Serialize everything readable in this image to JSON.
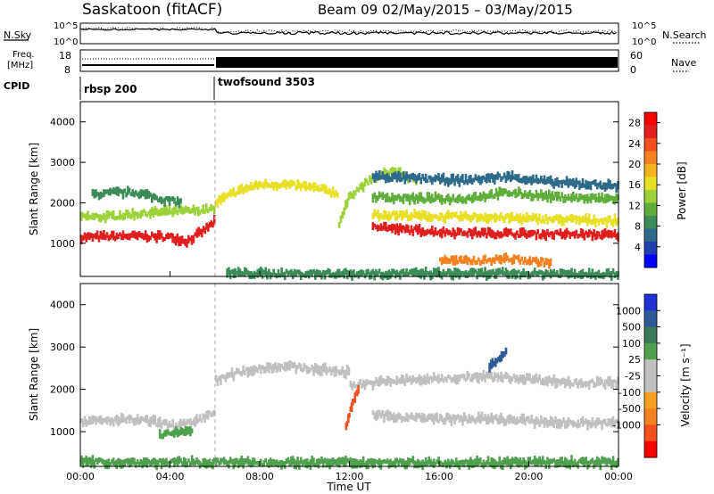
{
  "header": {
    "station": "Saskatoon (fitACF)",
    "beam_and_dates": "Beam 09  02/May/2015 – 03/May/2015"
  },
  "top_panels": {
    "nsky_label": "N.Sky",
    "nsky_ticks": [
      "10^5",
      "10^0"
    ],
    "nsearch_label": "N.Search",
    "freq_label_line1": "Freq.",
    "freq_label_line2": "[MHz]",
    "freq_ticks": [
      "18",
      "8"
    ],
    "nave_ticks": [
      "60",
      "0"
    ],
    "nave_label": "Nave",
    "cpid_label": "CPID",
    "cpid_segments": [
      {
        "name": "rbsp 200",
        "start_hour": 0,
        "end_hour": 6
      },
      {
        "name": "twofsound 3503",
        "start_hour": 6,
        "end_hour": 24
      }
    ]
  },
  "colors": {
    "power": [
      "#0000ff",
      "#1f3fb0",
      "#2e6a8a",
      "#3c8c5a",
      "#5fae3c",
      "#9ed23a",
      "#e7e027",
      "#f4b41e",
      "#f58220",
      "#f0501e",
      "#e01f1f",
      "#ff0000"
    ],
    "velocity": [
      "#ff0000",
      "#f0501e",
      "#f58220",
      "#f5a020",
      "#c0c0c0",
      "#c0c0c0",
      "#4fa04f",
      "#3a7a5a",
      "#2e5a9a",
      "#1f2fd0"
    ]
  },
  "chart_data": [
    {
      "type": "heatmap",
      "title": "Power",
      "ylabel": "Slant Range [km]",
      "ylim": [
        180,
        4500
      ],
      "yticks": [
        "1000",
        "2000",
        "3000",
        "4000"
      ],
      "xlim": [
        0,
        24
      ],
      "colorbar_label": "Power [dB]",
      "colorbar_ticks": [
        "4",
        "8",
        "12",
        "16",
        "20",
        "24",
        "28"
      ],
      "colorbar_range": [
        0,
        30
      ],
      "bands": [
        {
          "x": [
            0,
            1,
            2,
            3,
            4,
            4.7,
            5.3,
            6
          ],
          "y": [
            1150,
            1160,
            1180,
            1170,
            1150,
            1050,
            1250,
            1550
          ],
          "value": 27
        },
        {
          "x": [
            0,
            1,
            2,
            3,
            4,
            5,
            6
          ],
          "y": [
            1650,
            1650,
            1700,
            1750,
            1780,
            1800,
            1850
          ],
          "value": 14
        },
        {
          "x": [
            0.5,
            1.5,
            2.5,
            3.5,
            4.5
          ],
          "y": [
            2200,
            2250,
            2250,
            2100,
            2000
          ],
          "value": 9
        },
        {
          "x": [
            6,
            7,
            8,
            9,
            10,
            11,
            11.5
          ],
          "y": [
            2000,
            2300,
            2450,
            2450,
            2400,
            2300,
            2200
          ],
          "value": 16
        },
        {
          "x": [
            11.5,
            12,
            13,
            14,
            15
          ],
          "y": [
            1500,
            2200,
            2600,
            2800,
            2500
          ],
          "value": 13
        },
        {
          "x": [
            13,
            14,
            16,
            18,
            20,
            22,
            24
          ],
          "y": [
            1450,
            1350,
            1280,
            1250,
            1230,
            1220,
            1200
          ],
          "value": 27
        },
        {
          "x": [
            13,
            14,
            16,
            18,
            20,
            22,
            24
          ],
          "y": [
            1700,
            1700,
            1650,
            1650,
            1600,
            1580,
            1550
          ],
          "value": 15
        },
        {
          "x": [
            13,
            15,
            17,
            19,
            21,
            23,
            24
          ],
          "y": [
            2150,
            2100,
            2100,
            2250,
            2150,
            2100,
            2100
          ],
          "value": 11
        },
        {
          "x": [
            13,
            15,
            17,
            19,
            21,
            23,
            24
          ],
          "y": [
            2650,
            2600,
            2550,
            2650,
            2500,
            2450,
            2400
          ],
          "value": 7
        },
        {
          "x": [
            16,
            17,
            18,
            19,
            20,
            21
          ],
          "y": [
            600,
            550,
            580,
            620,
            560,
            520
          ],
          "value": 20
        },
        {
          "x": [
            6.5,
            8,
            10,
            12,
            14,
            16,
            18,
            20,
            22,
            24
          ],
          "y": [
            260,
            250,
            250,
            250,
            250,
            250,
            250,
            250,
            250,
            250
          ],
          "value": 9
        }
      ]
    },
    {
      "type": "heatmap",
      "title": "Velocity",
      "xlabel": "Time UT",
      "ylabel": "Slant Range [km]",
      "ylim": [
        180,
        4500
      ],
      "yticks": [
        "1000",
        "2000",
        "3000",
        "4000"
      ],
      "xlim": [
        0,
        24
      ],
      "xticks": [
        "00:00",
        "04:00",
        "08:00",
        "12:00",
        "16:00",
        "20:00",
        "00:00"
      ],
      "colorbar_label": "Velocity [m s⁻¹]",
      "colorbar_ticks": [
        "1000",
        "500",
        "100",
        "25",
        "-25",
        "-100",
        "-500",
        "-1000"
      ],
      "bands": [
        {
          "x": [
            0,
            1,
            2,
            3,
            4,
            5,
            6
          ],
          "y": [
            1250,
            1250,
            1280,
            1250,
            1150,
            1200,
            1500
          ],
          "value": 0
        },
        {
          "x": [
            3.5,
            4,
            4.5,
            5
          ],
          "y": [
            900,
            950,
            1000,
            1050
          ],
          "value": 150
        },
        {
          "x": [
            6,
            7,
            8,
            9,
            10,
            11,
            12
          ],
          "y": [
            2200,
            2400,
            2500,
            2550,
            2500,
            2450,
            2400
          ],
          "value": 0
        },
        {
          "x": [
            12,
            14,
            16,
            18,
            20,
            22,
            24
          ],
          "y": [
            2100,
            2200,
            2250,
            2300,
            2250,
            2150,
            2150
          ],
          "value": 0
        },
        {
          "x": [
            13,
            14,
            16,
            18,
            20,
            22,
            24
          ],
          "y": [
            1400,
            1350,
            1300,
            1300,
            1250,
            1200,
            1200
          ],
          "value": 0
        },
        {
          "x": [
            11.8,
            12.1,
            12.4
          ],
          "y": [
            1100,
            1700,
            2050
          ],
          "value": -300
        },
        {
          "x": [
            18.2,
            18.6,
            19
          ],
          "y": [
            2550,
            2750,
            2900
          ],
          "value": 600
        },
        {
          "x": [
            0,
            4,
            8,
            12,
            16,
            20,
            24
          ],
          "y": [
            280,
            270,
            270,
            270,
            270,
            270,
            270
          ],
          "value": 120
        }
      ]
    }
  ]
}
